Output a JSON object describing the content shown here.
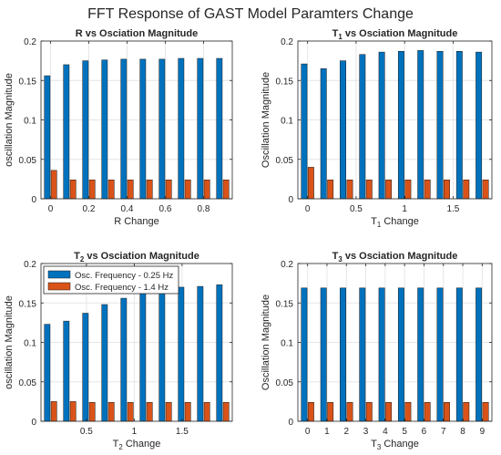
{
  "figure": {
    "suptitle": "FFT Response of GAST Model Paramters Change"
  },
  "colors": {
    "series1": "#0072BD",
    "series2": "#D95319",
    "axis": "#262626",
    "grid": "#e6e6e6"
  },
  "legend": {
    "placement": "top-left",
    "panel": 2
  },
  "chart_data": [
    {
      "type": "bar",
      "title": "R vs Osciation Magnitude",
      "title_base": "R",
      "title_sub": "",
      "title_rest": " vs Osciation Magnitude",
      "xlabel": "R Change",
      "xlabel_base": "R",
      "xlabel_sub": "",
      "xlabel_rest": " Change",
      "ylabel": "oscillation Magnitude",
      "xlim": [
        -0.05,
        0.95
      ],
      "ylim": [
        0,
        0.2
      ],
      "xticks": [
        0,
        0.2,
        0.4,
        0.6,
        0.8
      ],
      "xtick_labels": [
        "0",
        "0.2",
        "0.4",
        "0.6",
        "0.8"
      ],
      "yticks": [
        0,
        0.05,
        0.1,
        0.15,
        0.2
      ],
      "ytick_labels": [
        "0",
        "0.05",
        "0.1",
        "0.15",
        "0.2"
      ],
      "grid": true,
      "x": [
        0,
        0.1,
        0.2,
        0.3,
        0.4,
        0.5,
        0.6,
        0.7,
        0.8,
        0.9
      ],
      "series": [
        {
          "name": "Osc. Frequency - 0.25 Hz",
          "values": [
            0.156,
            0.17,
            0.175,
            0.176,
            0.177,
            0.177,
            0.177,
            0.178,
            0.178,
            0.178
          ]
        },
        {
          "name": "Osc. Frequency - 1.4 Hz",
          "values": [
            0.036,
            0.024,
            0.024,
            0.024,
            0.024,
            0.024,
            0.024,
            0.024,
            0.024,
            0.024
          ]
        }
      ]
    },
    {
      "type": "bar",
      "title": "T1 vs Osciation Magnitude",
      "title_base": "T",
      "title_sub": "1",
      "title_rest": " vs Osciation Magnitude",
      "xlabel": "T1 Change",
      "xlabel_base": "T",
      "xlabel_sub": "1",
      "xlabel_rest": " Change",
      "ylabel": "Oscillation Magnitude",
      "xlim": [
        -0.1,
        1.9
      ],
      "ylim": [
        0,
        0.2
      ],
      "xticks": [
        0,
        0.5,
        1,
        1.5
      ],
      "xtick_labels": [
        "0",
        "0.5",
        "1",
        "1.5"
      ],
      "yticks": [
        0,
        0.05,
        0.1,
        0.15,
        0.2
      ],
      "ytick_labels": [
        "0",
        "0.05",
        "0.1",
        "0.15",
        "0.2"
      ],
      "grid": true,
      "x": [
        0,
        0.2,
        0.4,
        0.6,
        0.8,
        1.0,
        1.2,
        1.4,
        1.6,
        1.8
      ],
      "series": [
        {
          "name": "Osc. Frequency - 0.25 Hz",
          "values": [
            0.171,
            0.165,
            0.175,
            0.183,
            0.186,
            0.187,
            0.188,
            0.187,
            0.187,
            0.186
          ]
        },
        {
          "name": "Osc. Frequency - 1.4 Hz",
          "values": [
            0.04,
            0.024,
            0.024,
            0.024,
            0.024,
            0.024,
            0.024,
            0.024,
            0.024,
            0.024
          ]
        }
      ]
    },
    {
      "type": "bar",
      "title": "T2 vs Osciation Magnitude",
      "title_base": "T",
      "title_sub": "2",
      "title_rest": " vs Osciation Magnitude",
      "xlabel": "T2 Change",
      "xlabel_base": "T",
      "xlabel_sub": "2",
      "xlabel_rest": " Change",
      "ylabel": "oscillation Magnitude",
      "xlim": [
        0.025,
        2.025
      ],
      "ylim": [
        0,
        0.2
      ],
      "xticks": [
        0.5,
        1,
        1.5
      ],
      "xtick_labels": [
        "0.5",
        "1",
        "1.5"
      ],
      "yticks": [
        0,
        0.05,
        0.1,
        0.15,
        0.2
      ],
      "ytick_labels": [
        "0",
        "0.05",
        "0.1",
        "0.15",
        "0.2"
      ],
      "grid": true,
      "x": [
        0.125,
        0.325,
        0.525,
        0.725,
        0.925,
        1.125,
        1.325,
        1.525,
        1.725,
        1.925
      ],
      "series": [
        {
          "name": "Osc. Frequency - 0.25 Hz",
          "values": [
            0.123,
            0.127,
            0.137,
            0.148,
            0.156,
            0.163,
            0.166,
            0.17,
            0.171,
            0.173
          ]
        },
        {
          "name": "Osc. Frequency - 1.4 Hz",
          "values": [
            0.025,
            0.025,
            0.024,
            0.024,
            0.024,
            0.024,
            0.024,
            0.024,
            0.024,
            0.024
          ]
        }
      ]
    },
    {
      "type": "bar",
      "title": "T3 vs Osciation Magnitude",
      "title_base": "T",
      "title_sub": "3",
      "title_rest": " vs Osciation Magnitude",
      "xlabel": "T3 Change",
      "xlabel_base": "T",
      "xlabel_sub": "3",
      "xlabel_rest": " Change",
      "ylabel": "Oscillation Magnitude",
      "xlim": [
        -0.5,
        9.5
      ],
      "ylim": [
        0,
        0.2
      ],
      "xticks": [
        0,
        1,
        2,
        3,
        4,
        5,
        6,
        7,
        8,
        9
      ],
      "xtick_labels": [
        "0",
        "1",
        "2",
        "3",
        "4",
        "5",
        "6",
        "7",
        "8",
        "9"
      ],
      "yticks": [
        0,
        0.05,
        0.1,
        0.15,
        0.2
      ],
      "ytick_labels": [
        "0",
        "0.05",
        "0.1",
        "0.15",
        "0.2"
      ],
      "grid": true,
      "x": [
        0,
        1,
        2,
        3,
        4,
        5,
        6,
        7,
        8,
        9
      ],
      "series": [
        {
          "name": "Osc. Frequency - 0.25 Hz",
          "values": [
            0.169,
            0.169,
            0.169,
            0.169,
            0.169,
            0.169,
            0.169,
            0.169,
            0.169,
            0.169
          ]
        },
        {
          "name": "Osc. Frequency - 1.4 Hz",
          "values": [
            0.024,
            0.024,
            0.024,
            0.024,
            0.024,
            0.024,
            0.024,
            0.024,
            0.024,
            0.024
          ]
        }
      ]
    }
  ]
}
